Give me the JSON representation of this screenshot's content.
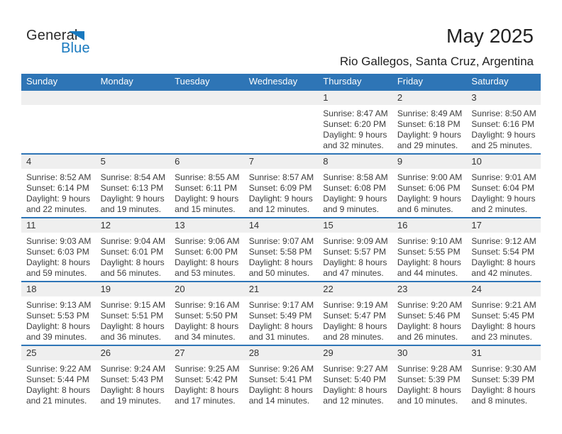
{
  "logo": {
    "general": "General",
    "blue": "Blue"
  },
  "header": {
    "title": "May 2025",
    "subtitle": "Rio Gallegos, Santa Cruz, Argentina"
  },
  "weekdays": [
    "Sunday",
    "Monday",
    "Tuesday",
    "Wednesday",
    "Thursday",
    "Friday",
    "Saturday"
  ],
  "colors": {
    "header_blue": "#2E75B6",
    "logo_blue": "#1879BF",
    "band_gray": "#EFEFEF",
    "text_dark": "#222222",
    "text_detail": "#3C3C3C"
  },
  "weeks": [
    [
      {
        "day": "",
        "lines": []
      },
      {
        "day": "",
        "lines": []
      },
      {
        "day": "",
        "lines": []
      },
      {
        "day": "",
        "lines": []
      },
      {
        "day": "1",
        "lines": [
          "Sunrise: 8:47 AM",
          "Sunset: 6:20 PM",
          "Daylight: 9 hours",
          "and 32 minutes."
        ]
      },
      {
        "day": "2",
        "lines": [
          "Sunrise: 8:49 AM",
          "Sunset: 6:18 PM",
          "Daylight: 9 hours",
          "and 29 minutes."
        ]
      },
      {
        "day": "3",
        "lines": [
          "Sunrise: 8:50 AM",
          "Sunset: 6:16 PM",
          "Daylight: 9 hours",
          "and 25 minutes."
        ]
      }
    ],
    [
      {
        "day": "4",
        "lines": [
          "Sunrise: 8:52 AM",
          "Sunset: 6:14 PM",
          "Daylight: 9 hours",
          "and 22 minutes."
        ]
      },
      {
        "day": "5",
        "lines": [
          "Sunrise: 8:54 AM",
          "Sunset: 6:13 PM",
          "Daylight: 9 hours",
          "and 19 minutes."
        ]
      },
      {
        "day": "6",
        "lines": [
          "Sunrise: 8:55 AM",
          "Sunset: 6:11 PM",
          "Daylight: 9 hours",
          "and 15 minutes."
        ]
      },
      {
        "day": "7",
        "lines": [
          "Sunrise: 8:57 AM",
          "Sunset: 6:09 PM",
          "Daylight: 9 hours",
          "and 12 minutes."
        ]
      },
      {
        "day": "8",
        "lines": [
          "Sunrise: 8:58 AM",
          "Sunset: 6:08 PM",
          "Daylight: 9 hours",
          "and 9 minutes."
        ]
      },
      {
        "day": "9",
        "lines": [
          "Sunrise: 9:00 AM",
          "Sunset: 6:06 PM",
          "Daylight: 9 hours",
          "and 6 minutes."
        ]
      },
      {
        "day": "10",
        "lines": [
          "Sunrise: 9:01 AM",
          "Sunset: 6:04 PM",
          "Daylight: 9 hours",
          "and 2 minutes."
        ]
      }
    ],
    [
      {
        "day": "11",
        "lines": [
          "Sunrise: 9:03 AM",
          "Sunset: 6:03 PM",
          "Daylight: 8 hours",
          "and 59 minutes."
        ]
      },
      {
        "day": "12",
        "lines": [
          "Sunrise: 9:04 AM",
          "Sunset: 6:01 PM",
          "Daylight: 8 hours",
          "and 56 minutes."
        ]
      },
      {
        "day": "13",
        "lines": [
          "Sunrise: 9:06 AM",
          "Sunset: 6:00 PM",
          "Daylight: 8 hours",
          "and 53 minutes."
        ]
      },
      {
        "day": "14",
        "lines": [
          "Sunrise: 9:07 AM",
          "Sunset: 5:58 PM",
          "Daylight: 8 hours",
          "and 50 minutes."
        ]
      },
      {
        "day": "15",
        "lines": [
          "Sunrise: 9:09 AM",
          "Sunset: 5:57 PM",
          "Daylight: 8 hours",
          "and 47 minutes."
        ]
      },
      {
        "day": "16",
        "lines": [
          "Sunrise: 9:10 AM",
          "Sunset: 5:55 PM",
          "Daylight: 8 hours",
          "and 44 minutes."
        ]
      },
      {
        "day": "17",
        "lines": [
          "Sunrise: 9:12 AM",
          "Sunset: 5:54 PM",
          "Daylight: 8 hours",
          "and 42 minutes."
        ]
      }
    ],
    [
      {
        "day": "18",
        "lines": [
          "Sunrise: 9:13 AM",
          "Sunset: 5:53 PM",
          "Daylight: 8 hours",
          "and 39 minutes."
        ]
      },
      {
        "day": "19",
        "lines": [
          "Sunrise: 9:15 AM",
          "Sunset: 5:51 PM",
          "Daylight: 8 hours",
          "and 36 minutes."
        ]
      },
      {
        "day": "20",
        "lines": [
          "Sunrise: 9:16 AM",
          "Sunset: 5:50 PM",
          "Daylight: 8 hours",
          "and 34 minutes."
        ]
      },
      {
        "day": "21",
        "lines": [
          "Sunrise: 9:17 AM",
          "Sunset: 5:49 PM",
          "Daylight: 8 hours",
          "and 31 minutes."
        ]
      },
      {
        "day": "22",
        "lines": [
          "Sunrise: 9:19 AM",
          "Sunset: 5:47 PM",
          "Daylight: 8 hours",
          "and 28 minutes."
        ]
      },
      {
        "day": "23",
        "lines": [
          "Sunrise: 9:20 AM",
          "Sunset: 5:46 PM",
          "Daylight: 8 hours",
          "and 26 minutes."
        ]
      },
      {
        "day": "24",
        "lines": [
          "Sunrise: 9:21 AM",
          "Sunset: 5:45 PM",
          "Daylight: 8 hours",
          "and 23 minutes."
        ]
      }
    ],
    [
      {
        "day": "25",
        "lines": [
          "Sunrise: 9:22 AM",
          "Sunset: 5:44 PM",
          "Daylight: 8 hours",
          "and 21 minutes."
        ]
      },
      {
        "day": "26",
        "lines": [
          "Sunrise: 9:24 AM",
          "Sunset: 5:43 PM",
          "Daylight: 8 hours",
          "and 19 minutes."
        ]
      },
      {
        "day": "27",
        "lines": [
          "Sunrise: 9:25 AM",
          "Sunset: 5:42 PM",
          "Daylight: 8 hours",
          "and 17 minutes."
        ]
      },
      {
        "day": "28",
        "lines": [
          "Sunrise: 9:26 AM",
          "Sunset: 5:41 PM",
          "Daylight: 8 hours",
          "and 14 minutes."
        ]
      },
      {
        "day": "29",
        "lines": [
          "Sunrise: 9:27 AM",
          "Sunset: 5:40 PM",
          "Daylight: 8 hours",
          "and 12 minutes."
        ]
      },
      {
        "day": "30",
        "lines": [
          "Sunrise: 9:28 AM",
          "Sunset: 5:39 PM",
          "Daylight: 8 hours",
          "and 10 minutes."
        ]
      },
      {
        "day": "31",
        "lines": [
          "Sunrise: 9:30 AM",
          "Sunset: 5:39 PM",
          "Daylight: 8 hours",
          "and 8 minutes."
        ]
      }
    ]
  ]
}
